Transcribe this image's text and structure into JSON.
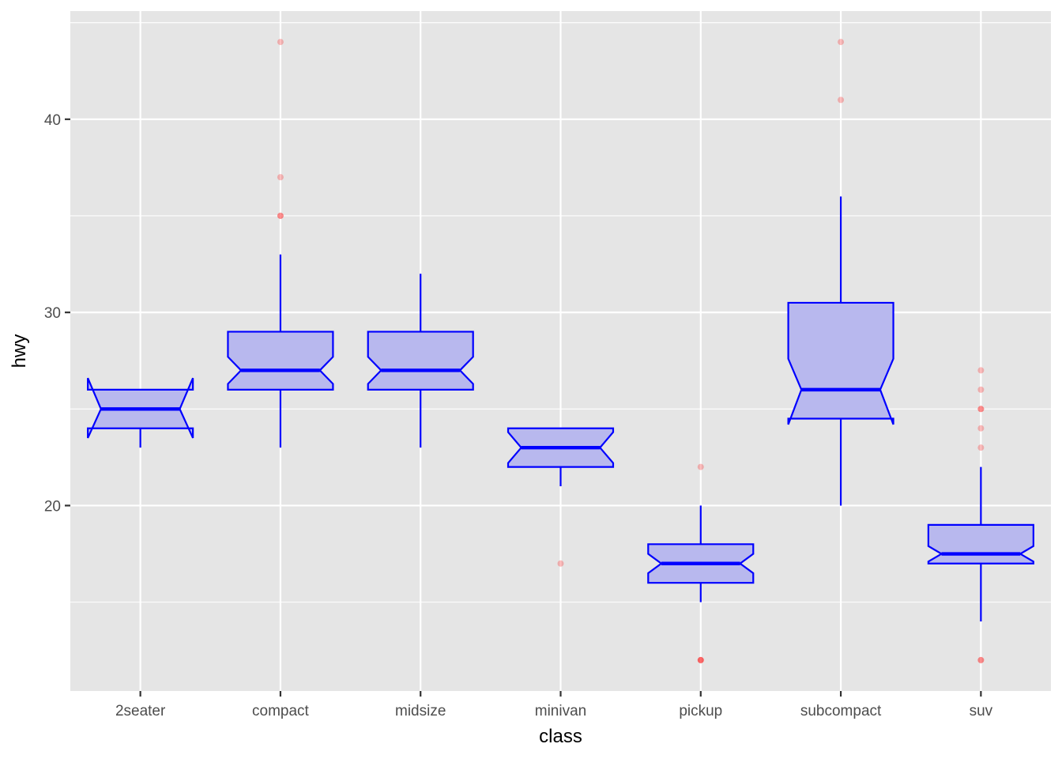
{
  "chart_data": {
    "type": "boxplot",
    "notched": true,
    "xlabel": "class",
    "ylabel": "hwy",
    "ylim": [
      10.4,
      45.6
    ],
    "y_ticks": [
      20,
      30,
      40
    ],
    "y_minor_ticks": [
      15,
      25,
      35,
      45
    ],
    "grid": true,
    "colors": {
      "panel": "#e5e5e5",
      "grid": "#ffffff",
      "box_line": "#0000ff",
      "box_fill": "#b8b8ee",
      "outlier": "#ff0000"
    },
    "categories": [
      "2seater",
      "compact",
      "midsize",
      "minivan",
      "pickup",
      "subcompact",
      "suv"
    ],
    "boxes": [
      {
        "name": "2seater",
        "lower_whisker": 23,
        "q1": 24,
        "median": 25,
        "q3": 26,
        "upper_whisker": 26,
        "notch_low": 23.5,
        "notch_high": 26.6,
        "outliers": []
      },
      {
        "name": "compact",
        "lower_whisker": 23,
        "q1": 26,
        "median": 27,
        "q3": 29,
        "upper_whisker": 33,
        "notch_low": 26.3,
        "notch_high": 27.7,
        "outliers": [
          35,
          35,
          37,
          44
        ]
      },
      {
        "name": "midsize",
        "lower_whisker": 23,
        "q1": 26,
        "median": 27,
        "q3": 29,
        "upper_whisker": 32,
        "notch_low": 26.3,
        "notch_high": 27.7,
        "outliers": []
      },
      {
        "name": "minivan",
        "lower_whisker": 21,
        "q1": 22,
        "median": 23,
        "q3": 24,
        "upper_whisker": 24,
        "notch_low": 22.2,
        "notch_high": 23.8,
        "outliers": [
          17
        ]
      },
      {
        "name": "pickup",
        "lower_whisker": 15,
        "q1": 16,
        "median": 17,
        "q3": 18,
        "upper_whisker": 20,
        "notch_low": 16.5,
        "notch_high": 17.5,
        "outliers": [
          12,
          12,
          12,
          22
        ]
      },
      {
        "name": "subcompact",
        "lower_whisker": 20,
        "q1": 24.5,
        "median": 26,
        "q3": 30.5,
        "upper_whisker": 36,
        "notch_low": 24.2,
        "notch_high": 27.6,
        "outliers": [
          41,
          44
        ]
      },
      {
        "name": "suv",
        "lower_whisker": 14,
        "q1": 17,
        "median": 17.5,
        "q3": 19,
        "upper_whisker": 22,
        "notch_low": 17.1,
        "notch_high": 17.9,
        "outliers": [
          12,
          12,
          23,
          24,
          25,
          25,
          26,
          27
        ]
      }
    ]
  }
}
